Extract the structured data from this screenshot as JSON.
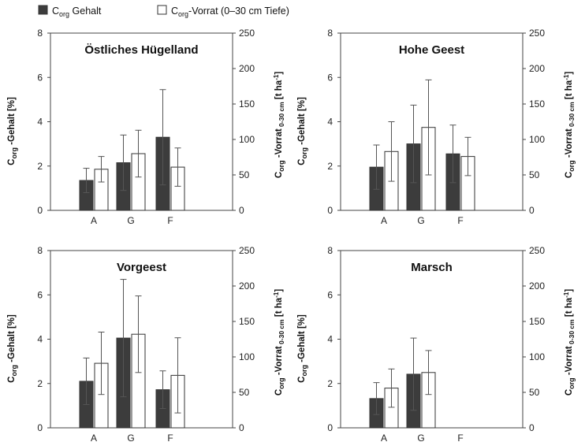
{
  "legend": {
    "sub_org": "org",
    "gehalt_pre": "C",
    "gehalt_post": " Gehalt",
    "vorrat_pre": "C",
    "vorrat_post": "-Vorrat (0–30 cm Tiefe)"
  },
  "axis_labels": {
    "left": {
      "pre": "C",
      "sub": "org",
      "post": " -Gehalt [%]"
    },
    "right": {
      "pre": "C",
      "sub1": "org",
      "mid": " -Vorrat",
      "sub2": " 0-30 cm",
      "post": " [t ha",
      "sup": "-1",
      "close": "]"
    }
  },
  "colors": {
    "gehalt_fill": "#3c3c3c",
    "vorrat_fill": "#ffffff",
    "bar_stroke": "#333333",
    "error_bar": "#555555",
    "frame": "#444444"
  },
  "chart_data": [
    {
      "type": "bar",
      "title": "Östliches Hügelland",
      "categories": [
        "A",
        "G",
        "F"
      ],
      "ylim_left": [
        0,
        8
      ],
      "yticks_left": [
        0,
        2,
        4,
        6,
        8
      ],
      "ylim_right": [
        0,
        250
      ],
      "yticks_right": [
        0,
        50,
        100,
        150,
        200,
        250
      ],
      "series": [
        {
          "name": "Corg Gehalt",
          "axis": "left",
          "values": [
            1.35,
            2.15,
            3.3
          ],
          "errors": [
            0.55,
            1.25,
            2.15
          ]
        },
        {
          "name": "Corg-Vorrat (0–30 cm Tiefe)",
          "axis": "right",
          "values": [
            58,
            80,
            61
          ],
          "errors": [
            18,
            33,
            27
          ]
        }
      ]
    },
    {
      "type": "bar",
      "title": "Hohe Geest",
      "categories": [
        "A",
        "G",
        "F"
      ],
      "ylim_left": [
        0,
        8
      ],
      "yticks_left": [
        0,
        2,
        4,
        6,
        8
      ],
      "ylim_right": [
        0,
        250
      ],
      "yticks_right": [
        0,
        50,
        100,
        150,
        200,
        250
      ],
      "series": [
        {
          "name": "Corg Gehalt",
          "axis": "left",
          "values": [
            1.95,
            3.0,
            2.55
          ],
          "errors": [
            1.0,
            1.75,
            1.3
          ]
        },
        {
          "name": "Corg-Vorrat (0–30 cm Tiefe)",
          "axis": "right",
          "values": [
            83,
            117,
            76
          ],
          "errors": [
            42,
            67,
            27
          ]
        }
      ]
    },
    {
      "type": "bar",
      "title": "Vorgeest",
      "categories": [
        "A",
        "G",
        "F"
      ],
      "ylim_left": [
        0,
        8
      ],
      "yticks_left": [
        0,
        2,
        4,
        6,
        8
      ],
      "ylim_right": [
        0,
        250
      ],
      "yticks_right": [
        0,
        50,
        100,
        150,
        200,
        250
      ],
      "series": [
        {
          "name": "Corg Gehalt",
          "axis": "left",
          "values": [
            2.1,
            4.05,
            1.72
          ],
          "errors": [
            1.05,
            2.65,
            0.85
          ]
        },
        {
          "name": "Corg-Vorrat (0–30 cm Tiefe)",
          "axis": "right",
          "values": [
            91,
            132,
            74
          ],
          "errors": [
            44,
            54,
            53
          ]
        }
      ]
    },
    {
      "type": "bar",
      "title": "Marsch",
      "categories": [
        "A",
        "G",
        "F"
      ],
      "ylim_left": [
        0,
        8
      ],
      "yticks_left": [
        0,
        2,
        4,
        6,
        8
      ],
      "ylim_right": [
        0,
        250
      ],
      "yticks_right": [
        0,
        50,
        100,
        150,
        200,
        250
      ],
      "series": [
        {
          "name": "Corg Gehalt",
          "axis": "left",
          "values": [
            1.32,
            2.42,
            null
          ],
          "errors": [
            0.72,
            1.63,
            null
          ]
        },
        {
          "name": "Corg-Vorrat (0–30 cm Tiefe)",
          "axis": "right",
          "values": [
            56,
            78,
            null
          ],
          "errors": [
            27,
            31,
            null
          ]
        }
      ]
    }
  ]
}
